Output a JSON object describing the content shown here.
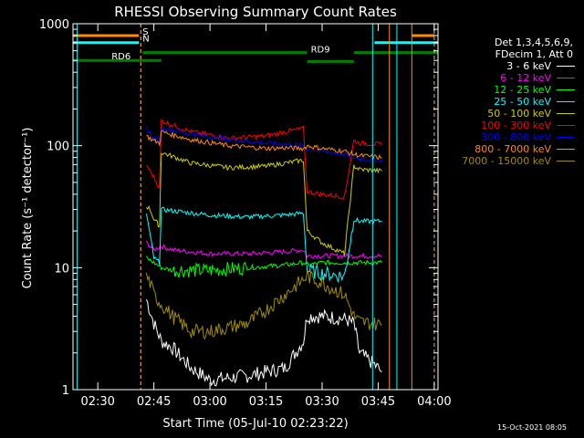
{
  "chart_data": {
    "type": "line",
    "title": "RHESSI Observing Summary Count Rates",
    "xlabel": "Start Time (05-Jul-10 02:23:22)",
    "ylabel": "Count Rate (s⁻¹ detector⁻¹)",
    "yscale": "log",
    "xlim": [
      "02:23:22",
      "04:01:00"
    ],
    "ylim": [
      1,
      1000
    ],
    "x_ticks": [
      "02:30",
      "02:45",
      "03:00",
      "03:15",
      "03:30",
      "03:45",
      "04:00"
    ],
    "y_ticks": [
      "1",
      "10",
      "100",
      "1000"
    ],
    "legend_title": [
      "Det 1,3,4,5,6,9,",
      "FDecim 1, Att 0"
    ],
    "series": [
      {
        "name": "3 - 6 keV",
        "color": "#ffffff",
        "x": [
          "02:43:00",
          "02:45:00",
          "02:47:00",
          "02:50:00",
          "02:55:00",
          "03:00:00",
          "03:10:00",
          "03:20:00",
          "03:25:00",
          "03:26:00",
          "03:30:00",
          "03:36:00",
          "03:38:30",
          "03:40:00",
          "03:44:00",
          "03:46:00"
        ],
        "values": [
          5.5,
          3.5,
          2.5,
          2.2,
          1.5,
          1.2,
          1.3,
          1.5,
          2.5,
          4.0,
          4.0,
          3.8,
          3.5,
          2.0,
          1.6,
          1.4
        ]
      },
      {
        "name": "6 - 12 keV",
        "color": "#ff00ff",
        "x": [
          "02:43:00",
          "02:45:00",
          "02:47:00",
          "02:50:00",
          "03:00:00",
          "03:10:00",
          "03:20:00",
          "03:25:00",
          "03:26:00",
          "03:30:00",
          "03:36:00",
          "03:38:30",
          "03:40:00",
          "03:46:00"
        ],
        "values": [
          16,
          14,
          15,
          14,
          13,
          13,
          13.5,
          14,
          12.5,
          12.5,
          12.5,
          12.5,
          12.5,
          12.5
        ]
      },
      {
        "name": "12 - 25 keV",
        "color": "#00ff00",
        "x": [
          "02:43:00",
          "02:45:00",
          "02:47:00",
          "02:50:00",
          "03:00:00",
          "03:10:00",
          "03:20:00",
          "03:25:00",
          "03:26:00",
          "03:30:00",
          "03:36:00",
          "03:38:30",
          "03:40:00",
          "03:46:00"
        ],
        "values": [
          12,
          11,
          10,
          9.5,
          9.5,
          10,
          10.5,
          11,
          10.5,
          11,
          11,
          11,
          11,
          11
        ]
      },
      {
        "name": "25 - 50 keV",
        "color": "#00ffff",
        "x": [
          "02:43:00",
          "02:45:00",
          "02:46:30",
          "02:47:00",
          "03:00:00",
          "03:10:00",
          "03:20:00",
          "03:25:00",
          "03:26:00",
          "03:30:00",
          "03:36:00",
          "03:38:30",
          "03:40:00",
          "03:46:00"
        ],
        "values": [
          28,
          12,
          11,
          30,
          27,
          26,
          27,
          28,
          9.5,
          9.0,
          8.5,
          25,
          24,
          24
        ]
      },
      {
        "name": "50 - 100 keV",
        "color": "#cccc00",
        "x": [
          "02:43:00",
          "02:44:00",
          "02:45:00",
          "02:46:30",
          "02:47:00",
          "02:55:00",
          "03:05:00",
          "03:15:00",
          "03:20:00",
          "03:25:00",
          "03:26:00",
          "03:30:00",
          "03:36:00",
          "03:38:30",
          "03:40:00",
          "03:46:00"
        ],
        "values": [
          32,
          30,
          25,
          22,
          88,
          72,
          66,
          68,
          72,
          76,
          20,
          16,
          13,
          68,
          64,
          62
        ]
      },
      {
        "name": "100 - 300 keV",
        "color": "#ff0000",
        "x": [
          "02:43:00",
          "02:45:00",
          "02:46:30",
          "02:47:00",
          "02:55:00",
          "03:05:00",
          "03:15:00",
          "03:20:00",
          "03:25:00",
          "03:26:00",
          "03:30:00",
          "03:36:00",
          "03:38:30",
          "03:40:00",
          "03:46:00"
        ],
        "values": [
          70,
          55,
          45,
          160,
          130,
          115,
          120,
          130,
          138,
          42,
          40,
          38,
          110,
          105,
          102
        ]
      },
      {
        "name": "300 - 800 keV",
        "color": "#0000ff",
        "x": [
          "02:43:00",
          "02:45:00",
          "02:46:30",
          "02:47:00",
          "02:55:00",
          "03:05:00",
          "03:15:00",
          "03:20:00",
          "03:25:00",
          "03:26:00",
          "03:30:00",
          "03:36:00",
          "03:38:30",
          "03:40:00",
          "03:46:00"
        ],
        "values": [
          140,
          115,
          110,
          140,
          125,
          112,
          105,
          103,
          100,
          95,
          90,
          85,
          80,
          78,
          76
        ]
      },
      {
        "name": "800 - 7000 keV",
        "color": "#ff8c00",
        "x": [
          "02:43:00",
          "02:45:00",
          "02:46:30",
          "02:47:00",
          "02:55:00",
          "03:05:00",
          "03:15:00",
          "03:20:00",
          "03:25:00",
          "03:26:00",
          "03:30:00",
          "03:36:00",
          "03:38:30",
          "03:40:00",
          "03:46:00"
        ],
        "values": [
          120,
          110,
          105,
          130,
          112,
          100,
          95,
          96,
          95,
          100,
          95,
          90,
          85,
          83,
          80
        ]
      },
      {
        "name": "7000 - 15000 keV",
        "color": "#a08c00",
        "x": [
          "02:43:00",
          "02:44:00",
          "02:45:00",
          "02:47:00",
          "02:50:00",
          "02:55:00",
          "03:00:00",
          "03:10:00",
          "03:15:00",
          "03:20:00",
          "03:25:00",
          "03:26:00",
          "03:30:00",
          "03:36:00",
          "03:38:30",
          "03:40:00",
          "03:46:00"
        ],
        "values": [
          8.5,
          7.5,
          6.0,
          5.0,
          4.0,
          3.0,
          3.0,
          3.5,
          4.5,
          6.0,
          8.0,
          8.5,
          7.5,
          6.0,
          4.0,
          3.6,
          3.4
        ]
      }
    ],
    "flags": [
      {
        "label": "S",
        "color": "#ff8c00",
        "segments": [
          [
            "02:23:22",
            "02:41:00"
          ],
          [
            "03:54:00",
            "04:00:00"
          ]
        ],
        "level": 800
      },
      {
        "label": "N",
        "color": "#00ffff",
        "segments": [
          [
            "02:23:22",
            "02:41:00"
          ],
          [
            "03:44:00",
            "04:01:00"
          ]
        ],
        "level": 700
      },
      {
        "label": "RD9",
        "color": "#008000",
        "segments": [
          [
            "02:42:00",
            "03:26:00"
          ],
          [
            "03:38:30",
            "04:01:00"
          ]
        ],
        "level": 580
      },
      {
        "label": "RD6",
        "color": "#008000",
        "segments": [
          [
            "02:23:22",
            "02:41:00"
          ],
          [
            "02:41:00",
            "02:47:00"
          ]
        ],
        "level": 500
      },
      {
        "label": "",
        "color": "#008000",
        "segments": [
          [
            "03:26:00",
            "03:38:30"
          ]
        ],
        "level": 490
      }
    ],
    "vlines": [
      {
        "x": "02:24:30",
        "color": "#00ffff",
        "dashed": false
      },
      {
        "x": "02:41:30",
        "color": "#00ffff",
        "dashed": true
      },
      {
        "x": "02:41:30",
        "color": "#ff8c00",
        "dashed": true
      },
      {
        "x": "03:43:30",
        "color": "#00ffff",
        "dashed": false
      },
      {
        "x": "03:50:00",
        "color": "#00ffff",
        "dashed": false
      },
      {
        "x": "03:48:00",
        "color": "#ff8c00",
        "dashed": false
      },
      {
        "x": "03:54:00",
        "color": "#ff8c00",
        "dashed": false
      },
      {
        "x": "04:00:00",
        "color": "#00ffff",
        "dashed": true
      },
      {
        "x": "04:00:00",
        "color": "#ff8c00",
        "dashed": true
      }
    ]
  },
  "footer": {
    "timestamp": "15-Oct-2021 08:05"
  }
}
